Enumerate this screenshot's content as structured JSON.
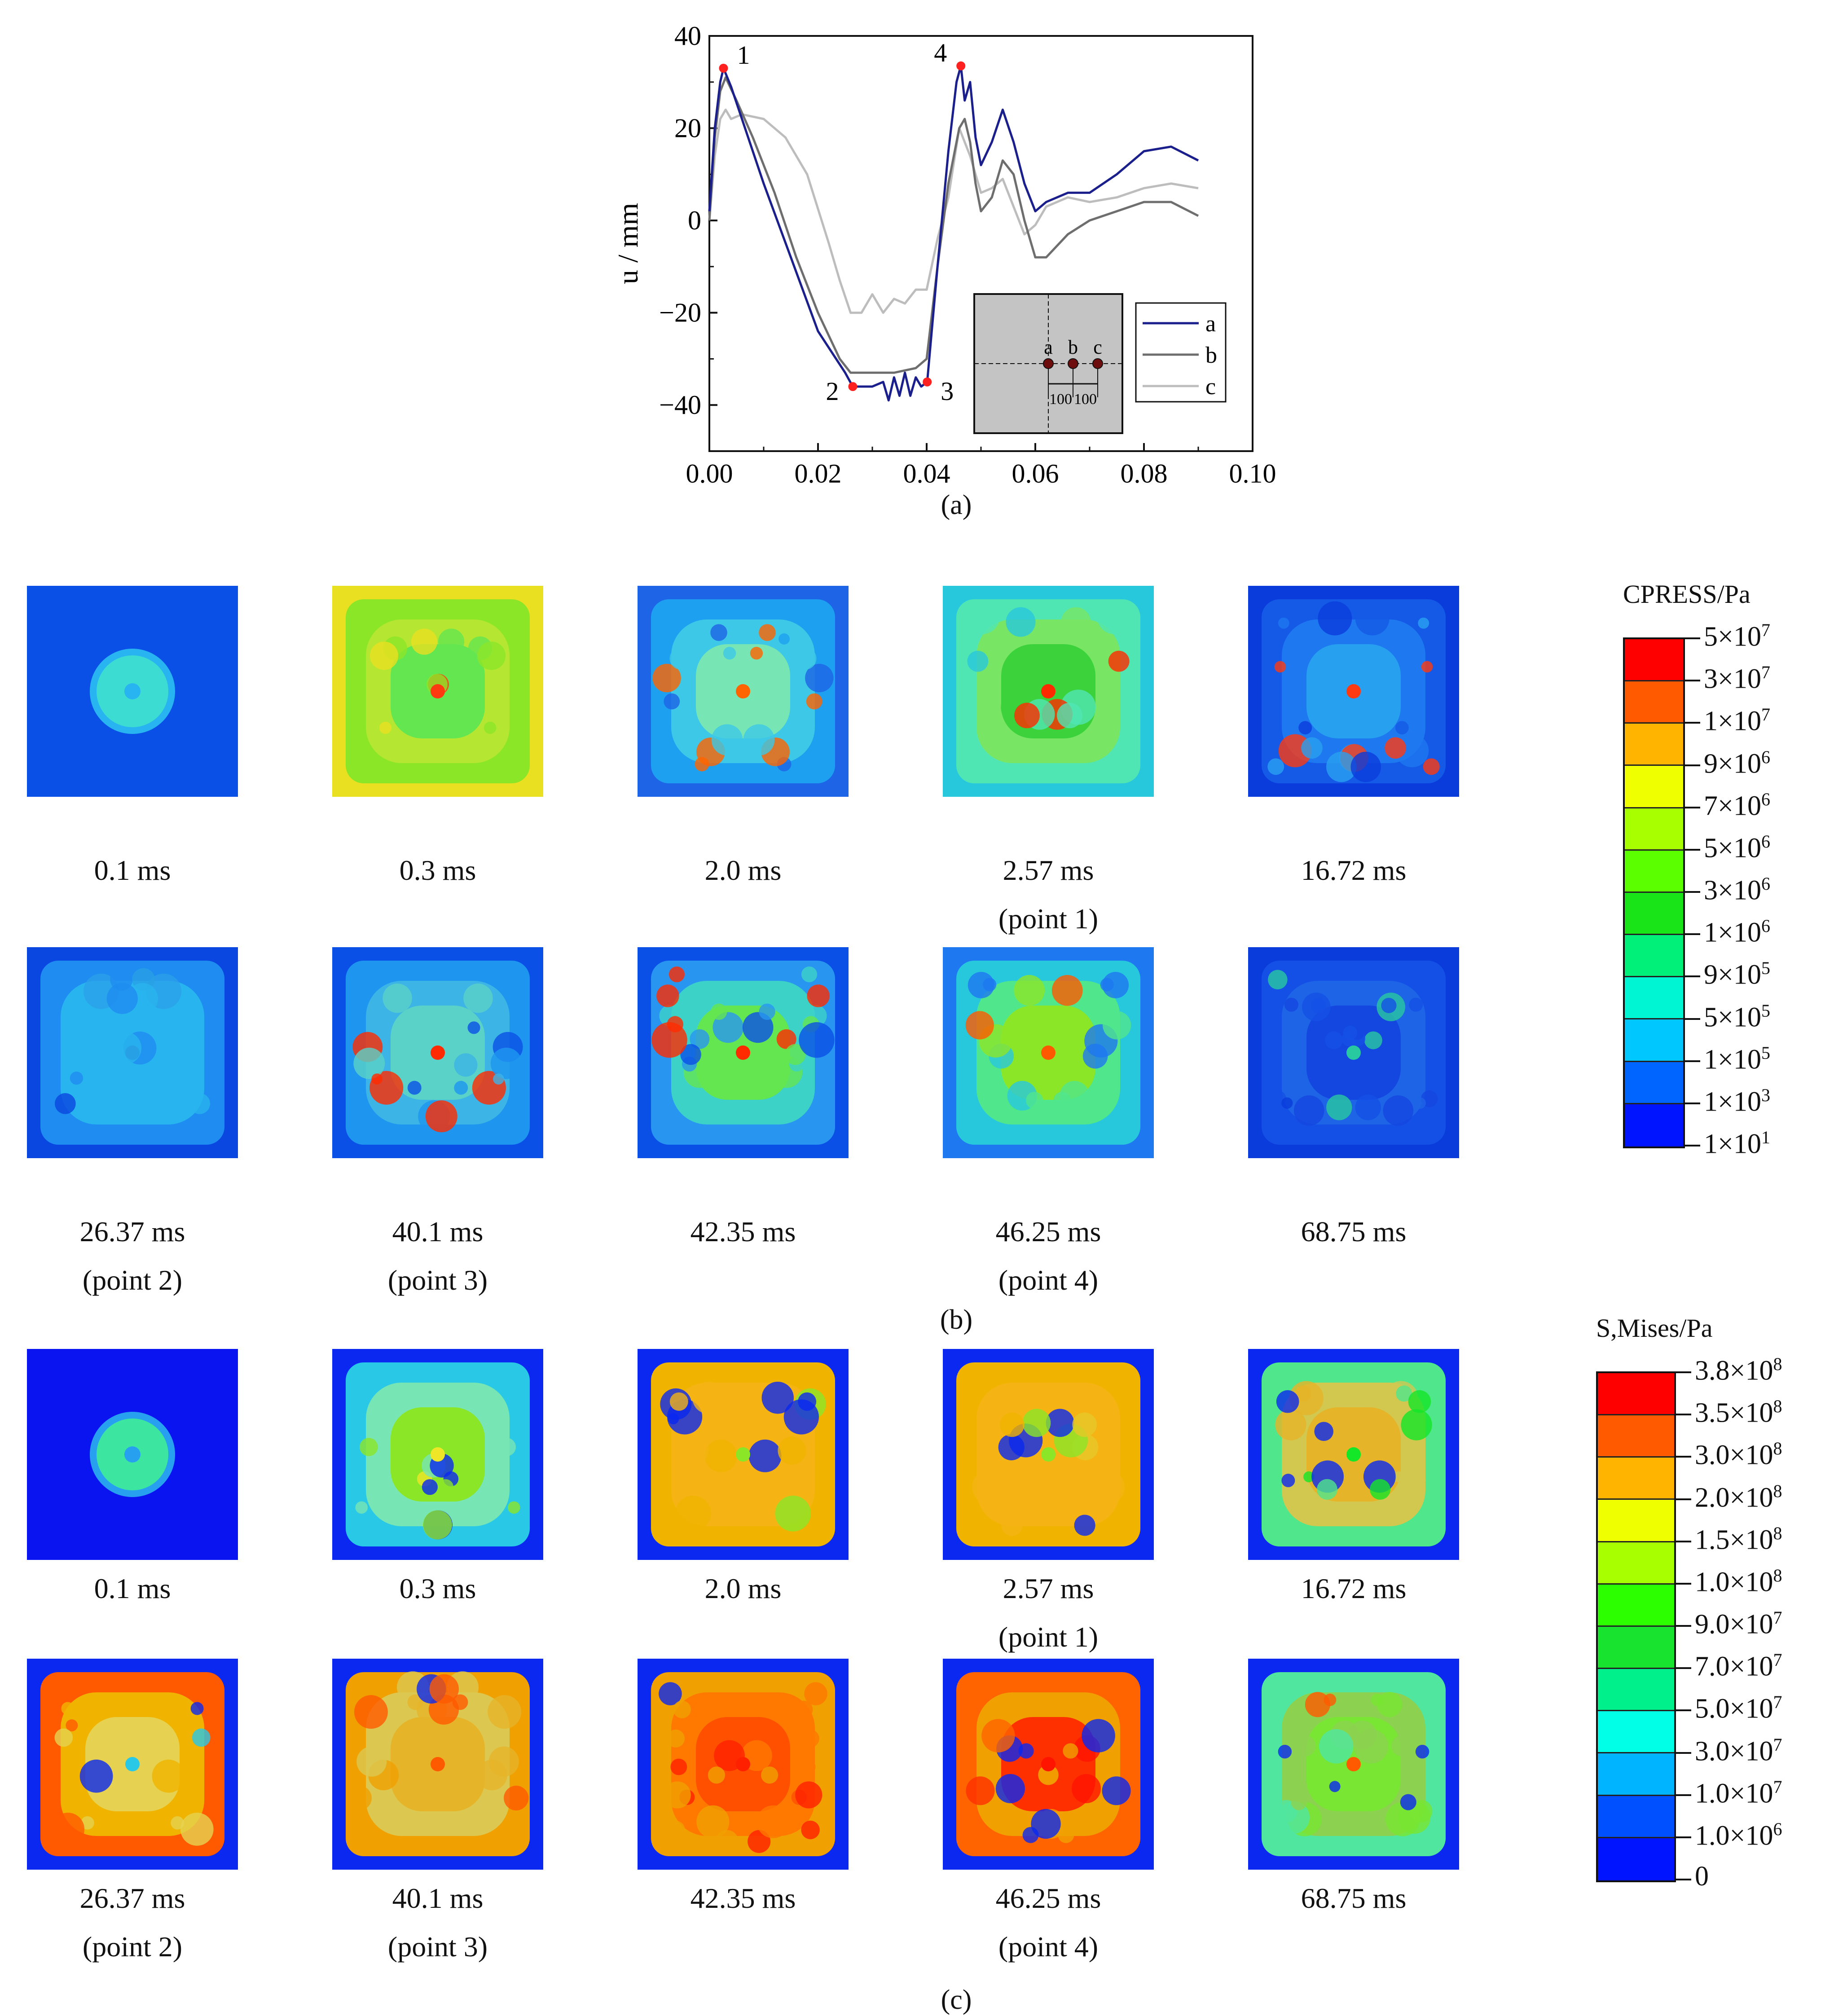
{
  "chart_data": {
    "type": "line",
    "title": "",
    "xlabel": "",
    "ylabel": "u / mm",
    "xlim": [
      0.0,
      0.1
    ],
    "ylim": [
      -50,
      40
    ],
    "x_ticks": [
      "0.00",
      "0.02",
      "0.04",
      "0.06",
      "0.08",
      "0.10"
    ],
    "y_ticks": [
      "40",
      "20",
      "0",
      "−20",
      "−40"
    ],
    "series": [
      {
        "name": "a",
        "color": "#1a1f8c",
        "x": [
          0.0,
          0.001,
          0.002,
          0.0026,
          0.004,
          0.006,
          0.01,
          0.015,
          0.02,
          0.025,
          0.0264,
          0.028,
          0.03,
          0.032,
          0.033,
          0.034,
          0.035,
          0.036,
          0.037,
          0.038,
          0.039,
          0.0401,
          0.042,
          0.044,
          0.0455,
          0.0463,
          0.047,
          0.048,
          0.049,
          0.05,
          0.052,
          0.054,
          0.056,
          0.058,
          0.06,
          0.062,
          0.066,
          0.07,
          0.075,
          0.08,
          0.085,
          0.09
        ],
        "y": [
          2,
          20,
          30,
          33,
          29,
          22,
          8,
          -8,
          -24,
          -33,
          -36,
          -36,
          -36,
          -35,
          -39,
          -34,
          -38,
          -33,
          -38,
          -34,
          -36,
          -35,
          -10,
          15,
          30,
          33.5,
          26,
          30,
          18,
          12,
          17,
          24,
          17,
          8,
          2,
          4,
          6,
          6,
          10,
          15,
          16,
          13
        ]
      },
      {
        "name": "b",
        "color": "#6e6e6e",
        "x": [
          0.0,
          0.001,
          0.002,
          0.003,
          0.005,
          0.008,
          0.012,
          0.016,
          0.02,
          0.024,
          0.026,
          0.03,
          0.034,
          0.038,
          0.04,
          0.042,
          0.044,
          0.046,
          0.047,
          0.048,
          0.049,
          0.05,
          0.052,
          0.054,
          0.056,
          0.058,
          0.06,
          0.062,
          0.066,
          0.07,
          0.075,
          0.08,
          0.085,
          0.09
        ],
        "y": [
          0,
          18,
          28,
          31,
          26,
          18,
          6,
          -8,
          -20,
          -30,
          -33,
          -33,
          -33,
          -32,
          -30,
          -10,
          8,
          20,
          22,
          17,
          8,
          2,
          5,
          13,
          10,
          0,
          -8,
          -8,
          -3,
          0,
          2,
          4,
          4,
          1
        ]
      },
      {
        "name": "c",
        "color": "#bdbdbd",
        "x": [
          0.0,
          0.001,
          0.002,
          0.003,
          0.004,
          0.006,
          0.01,
          0.014,
          0.018,
          0.022,
          0.024,
          0.026,
          0.028,
          0.03,
          0.032,
          0.034,
          0.036,
          0.038,
          0.04,
          0.042,
          0.044,
          0.046,
          0.048,
          0.05,
          0.052,
          0.054,
          0.056,
          0.058,
          0.06,
          0.062,
          0.066,
          0.07,
          0.075,
          0.08,
          0.085,
          0.09
        ],
        "y": [
          0,
          14,
          22,
          24,
          22,
          23,
          22,
          18,
          10,
          -5,
          -13,
          -20,
          -20,
          -16,
          -20,
          -17,
          -18,
          -15,
          -15,
          -4,
          5,
          20,
          14,
          6,
          7,
          9,
          3,
          -3,
          -1,
          3,
          5,
          4,
          5,
          7,
          8,
          7
        ]
      }
    ],
    "annotations": [
      {
        "text": "1",
        "x": 0.0026,
        "y": 33
      },
      {
        "text": "2",
        "x": 0.0264,
        "y": -36
      },
      {
        "text": "3",
        "x": 0.0401,
        "y": -35
      },
      {
        "text": "4",
        "x": 0.0463,
        "y": 33.5
      }
    ],
    "inset": {
      "points": [
        "a",
        "b",
        "c"
      ],
      "spacing": [
        "100",
        "100"
      ]
    },
    "legend": "bottom-right"
  },
  "labels": {
    "a": "(a)",
    "b": "(b)",
    "c": "(c)"
  },
  "panel_b": {
    "captions": [
      "0.1 ms",
      "0.3 ms",
      "2.0 ms",
      "2.57 ms\n(point 1)",
      "16.72 ms",
      "26.37 ms\n(point 2)",
      "40.1 ms\n(point 3)",
      "42.35 ms",
      "46.25 ms\n(point 4)",
      "68.75 ms"
    ],
    "legend_title": "CPRESS/Pa",
    "legend_colors": [
      "#ff0000",
      "#ff5a00",
      "#ffb400",
      "#f0ff00",
      "#a8ff00",
      "#5cff00",
      "#18e418",
      "#00f07a",
      "#00f6d2",
      "#00c8ff",
      "#0064ff",
      "#0014ff"
    ],
    "legend_values": [
      [
        "5×10",
        "7"
      ],
      [
        "3×10",
        "7"
      ],
      [
        "1×10",
        "7"
      ],
      [
        "9×10",
        "6"
      ],
      [
        "7×10",
        "6"
      ],
      [
        "5×10",
        "6"
      ],
      [
        "3×10",
        "6"
      ],
      [
        "1×10",
        "6"
      ],
      [
        "9×10",
        "5"
      ],
      [
        "5×10",
        "5"
      ],
      [
        "1×10",
        "5"
      ],
      [
        "1×10",
        "3"
      ],
      [
        "1×10",
        "1"
      ]
    ]
  },
  "panel_c": {
    "captions": [
      "0.1 ms",
      "0.3 ms",
      "2.0 ms",
      "2.57 ms\n(point 1)",
      "16.72 ms",
      "26.37 ms\n(point 2)",
      "40.1 ms\n(point 3)",
      "42.35 ms",
      "46.25 ms\n(point 4)",
      "68.75 ms"
    ],
    "legend_title": "S,Mises/Pa",
    "legend_colors": [
      "#ff0000",
      "#ff5a00",
      "#ffb400",
      "#f0ff00",
      "#a8ff00",
      "#2cff00",
      "#18e430",
      "#00f08c",
      "#00ffe6",
      "#00b4ff",
      "#0050ff",
      "#0014ff"
    ],
    "legend_values": [
      [
        "3.8×10",
        "8"
      ],
      [
        "3.5×10",
        "8"
      ],
      [
        "3.0×10",
        "8"
      ],
      [
        "2.0×10",
        "8"
      ],
      [
        "1.5×10",
        "8"
      ],
      [
        "1.0×10",
        "8"
      ],
      [
        "9.0×10",
        "7"
      ],
      [
        "7.0×10",
        "7"
      ],
      [
        "5.0×10",
        "7"
      ],
      [
        "3.0×10",
        "7"
      ],
      [
        "1.0×10",
        "7"
      ],
      [
        "1.0×10",
        "6"
      ],
      [
        "0",
        ""
      ]
    ]
  }
}
